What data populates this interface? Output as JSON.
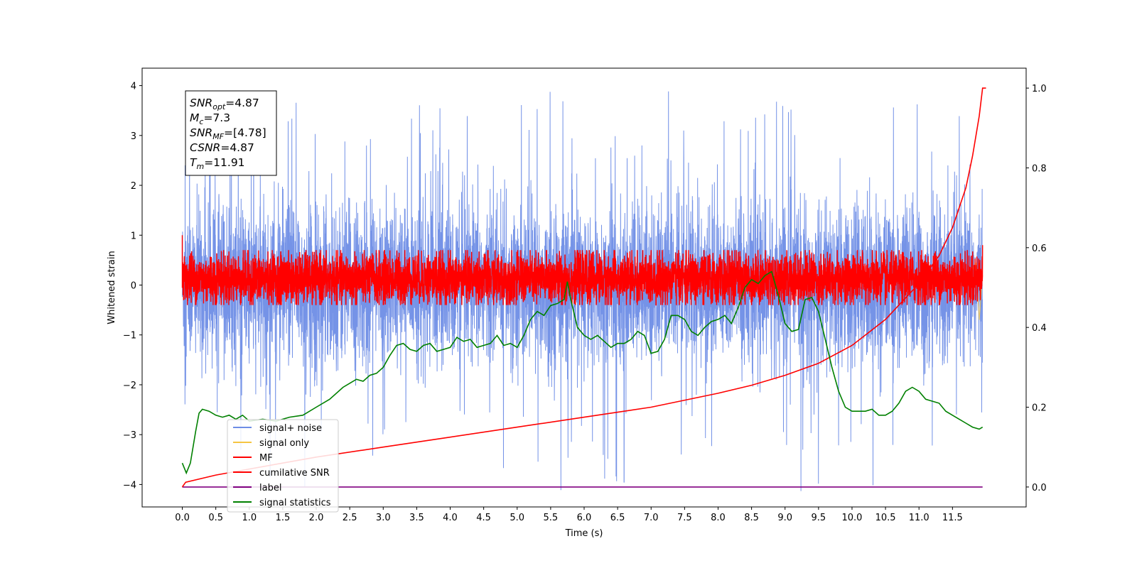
{
  "chart_data": {
    "type": "line",
    "title": "",
    "xlabel": "Time (s)",
    "ylabel": "Whitened strain",
    "y2label": "",
    "xlim": [
      -0.6,
      12.6
    ],
    "ylim": [
      -4.45,
      4.35
    ],
    "y2lim": [
      -0.05,
      1.05
    ],
    "x_ticks": [
      0.0,
      0.5,
      1.0,
      1.5,
      2.0,
      2.5,
      3.0,
      3.5,
      4.0,
      4.5,
      5.0,
      5.5,
      6.0,
      6.5,
      7.0,
      7.5,
      8.0,
      8.5,
      9.0,
      9.5,
      10.0,
      10.5,
      11.0,
      11.5
    ],
    "x_tick_labels": [
      "0.0",
      "0.5",
      "1.0",
      "1.5",
      "2.0",
      "2.5",
      "3.0",
      "3.5",
      "4.0",
      "4.5",
      "5.0",
      "5.5",
      "6.0",
      "6.5",
      "7.0",
      "7.5",
      "8.0",
      "8.5",
      "9.0",
      "9.5",
      "10.0",
      "10.5",
      "11.0",
      "11.5"
    ],
    "y_ticks": [
      -4,
      -3,
      -2,
      -1,
      0,
      1,
      2,
      3,
      4
    ],
    "y_tick_labels": [
      "−4",
      "−3",
      "−2",
      "−1",
      "0",
      "1",
      "2",
      "3",
      "4"
    ],
    "y2_ticks": [
      0.0,
      0.2,
      0.4,
      0.6,
      0.8,
      1.0
    ],
    "y2_tick_labels": [
      "0.0",
      "0.2",
      "0.4",
      "0.6",
      "0.8",
      "1.0"
    ],
    "grid": false,
    "legend_position": "lower-left",
    "legend": [
      {
        "label": "signal+ noise",
        "color": "#6e8de6"
      },
      {
        "label": "signal only",
        "color": "#f5c542"
      },
      {
        "label": "MF",
        "color": "#ff0000"
      },
      {
        "label": "cumilative SNR",
        "color": "#ff0000"
      },
      {
        "label": "label",
        "color": "#800080"
      },
      {
        "label": "signal statistics",
        "color": "#008000"
      }
    ],
    "annotation_lines": [
      {
        "sym": "SNR",
        "sub": "opt",
        "val": "=4.87"
      },
      {
        "sym": "M",
        "sub": "c",
        "val": "=7.3"
      },
      {
        "sym": "SNR",
        "sub": "MF",
        "val": "=[4.78]"
      },
      {
        "sym": "CSNR",
        "sub": "",
        "val": "=4.87"
      },
      {
        "sym": "T",
        "sub": "m",
        "val": "=11.91"
      }
    ],
    "series": [
      {
        "name": "signal+ noise",
        "axis": "left",
        "color": "#6e8de6",
        "kind": "noise",
        "x_range": [
          0.0,
          11.95
        ],
        "center": 0.0,
        "envelope": [
          -1.4,
          1.4
        ],
        "spike_peak_max": 3.9,
        "spike_peak_min": -4.15
      },
      {
        "name": "signal only",
        "axis": "left",
        "color": "#f5c542",
        "x": [
          11.4,
          11.5,
          11.6,
          11.7,
          11.75,
          11.8,
          11.85,
          11.9,
          11.95
        ],
        "y": [
          0.0,
          0.02,
          0.05,
          0.1,
          0.18,
          0.3,
          0.45,
          -0.7,
          0.2
        ]
      },
      {
        "name": "MF",
        "axis": "left",
        "color": "#ff0000",
        "kind": "noise",
        "x_range": [
          0.0,
          11.95
        ],
        "center": 0.0,
        "envelope": [
          -0.35,
          0.6
        ],
        "start_value": 1.0,
        "end_value": 0.8
      },
      {
        "name": "cumilative SNR",
        "axis": "right",
        "color": "#ff0000",
        "x": [
          0.0,
          0.05,
          0.5,
          1.0,
          2.0,
          3.0,
          4.0,
          5.0,
          6.0,
          7.0,
          8.0,
          8.5,
          9.0,
          9.5,
          10.0,
          10.5,
          11.0,
          11.3,
          11.5,
          11.7,
          11.8,
          11.9,
          11.95,
          12.0
        ],
        "y": [
          0.0,
          0.012,
          0.03,
          0.045,
          0.075,
          0.1,
          0.125,
          0.15,
          0.175,
          0.2,
          0.235,
          0.255,
          0.28,
          0.31,
          0.355,
          0.42,
          0.51,
          0.58,
          0.65,
          0.75,
          0.83,
          0.93,
          1.0,
          1.0
        ]
      },
      {
        "name": "label",
        "axis": "right",
        "color": "#800080",
        "x": [
          0.0,
          11.95
        ],
        "y": [
          0.0,
          0.0
        ]
      },
      {
        "name": "signal statistics",
        "axis": "right",
        "color": "#008000",
        "x": [
          0.0,
          0.06,
          0.12,
          0.2,
          0.25,
          0.3,
          0.4,
          0.5,
          0.6,
          0.7,
          0.8,
          0.9,
          1.0,
          1.2,
          1.4,
          1.6,
          1.8,
          2.0,
          2.2,
          2.4,
          2.5,
          2.6,
          2.7,
          2.8,
          2.9,
          3.0,
          3.1,
          3.2,
          3.3,
          3.4,
          3.5,
          3.6,
          3.7,
          3.8,
          3.9,
          4.0,
          4.1,
          4.2,
          4.3,
          4.4,
          4.5,
          4.6,
          4.7,
          4.8,
          4.9,
          5.0,
          5.1,
          5.2,
          5.3,
          5.4,
          5.5,
          5.6,
          5.7,
          5.75,
          5.8,
          5.9,
          6.0,
          6.1,
          6.2,
          6.3,
          6.4,
          6.5,
          6.6,
          6.7,
          6.8,
          6.9,
          7.0,
          7.1,
          7.2,
          7.3,
          7.4,
          7.5,
          7.6,
          7.7,
          7.8,
          7.9,
          8.0,
          8.1,
          8.2,
          8.3,
          8.4,
          8.5,
          8.6,
          8.7,
          8.8,
          8.9,
          9.0,
          9.1,
          9.2,
          9.3,
          9.4,
          9.5,
          9.6,
          9.7,
          9.8,
          9.9,
          10.0,
          10.1,
          10.2,
          10.3,
          10.4,
          10.5,
          10.6,
          10.7,
          10.8,
          10.9,
          11.0,
          11.1,
          11.2,
          11.3,
          11.4,
          11.5,
          11.6,
          11.7,
          11.8,
          11.9,
          11.95
        ],
        "y": [
          0.06,
          0.035,
          0.06,
          0.14,
          0.185,
          0.195,
          0.19,
          0.18,
          0.175,
          0.18,
          0.17,
          0.18,
          0.165,
          0.17,
          0.165,
          0.175,
          0.18,
          0.2,
          0.22,
          0.25,
          0.26,
          0.27,
          0.265,
          0.28,
          0.285,
          0.3,
          0.33,
          0.355,
          0.36,
          0.345,
          0.34,
          0.355,
          0.36,
          0.34,
          0.345,
          0.35,
          0.375,
          0.365,
          0.37,
          0.35,
          0.355,
          0.36,
          0.38,
          0.355,
          0.36,
          0.35,
          0.38,
          0.42,
          0.44,
          0.43,
          0.455,
          0.46,
          0.47,
          0.515,
          0.47,
          0.4,
          0.38,
          0.37,
          0.38,
          0.365,
          0.35,
          0.36,
          0.36,
          0.37,
          0.39,
          0.38,
          0.335,
          0.34,
          0.37,
          0.43,
          0.43,
          0.42,
          0.39,
          0.38,
          0.4,
          0.415,
          0.42,
          0.43,
          0.41,
          0.45,
          0.5,
          0.52,
          0.51,
          0.53,
          0.54,
          0.48,
          0.41,
          0.39,
          0.395,
          0.47,
          0.475,
          0.44,
          0.37,
          0.3,
          0.24,
          0.2,
          0.19,
          0.19,
          0.19,
          0.195,
          0.18,
          0.18,
          0.19,
          0.21,
          0.24,
          0.25,
          0.24,
          0.22,
          0.215,
          0.21,
          0.19,
          0.18,
          0.17,
          0.16,
          0.15,
          0.145,
          0.15
        ]
      }
    ]
  }
}
